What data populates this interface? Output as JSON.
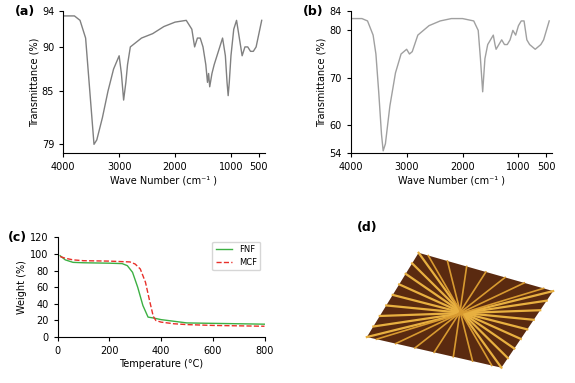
{
  "chart_data": [
    {
      "type": "line",
      "title": "(a)",
      "x_label": "Wave Number (cm⁻¹ )",
      "y_label": "Transmittance (%)",
      "x": [
        4000,
        3800,
        3700,
        3600,
        3500,
        3450,
        3400,
        3300,
        3200,
        3100,
        3000,
        2960,
        2920,
        2880,
        2850,
        2800,
        2600,
        2400,
        2200,
        2000,
        1800,
        1700,
        1650,
        1600,
        1550,
        1500,
        1450,
        1420,
        1400,
        1380,
        1340,
        1300,
        1250,
        1200,
        1150,
        1100,
        1070,
        1050,
        1030,
        1000,
        950,
        900,
        850,
        800,
        750,
        700,
        650,
        600,
        550,
        500,
        450
      ],
      "values": [
        93.5,
        93.5,
        93,
        91,
        83,
        79,
        79.5,
        82,
        85,
        87.5,
        89,
        87,
        84,
        86,
        88,
        90,
        91,
        91.5,
        92.3,
        92.8,
        93,
        92,
        90,
        91,
        91,
        90,
        88,
        86,
        87,
        85.5,
        87,
        88,
        89,
        90,
        91,
        89,
        86,
        84.5,
        86,
        89,
        92,
        93,
        91,
        89,
        90,
        90,
        89.5,
        89.5,
        90,
        91.5,
        93
      ],
      "color": "#808080",
      "xlim": [
        4000,
        400
      ],
      "xticks": [
        4000,
        3000,
        2000,
        1000,
        500
      ],
      "ylim": [
        78,
        94
      ],
      "yticks": [
        79,
        85,
        90,
        94
      ],
      "grid": false
    },
    {
      "type": "line",
      "title": "(b)",
      "x_label": "Wave Number (cm⁻¹ )",
      "y_label": "Transmittance (%)",
      "x": [
        4000,
        3800,
        3700,
        3600,
        3550,
        3500,
        3450,
        3420,
        3380,
        3300,
        3200,
        3100,
        3000,
        2950,
        2900,
        2800,
        2600,
        2400,
        2200,
        2000,
        1800,
        1720,
        1680,
        1640,
        1600,
        1550,
        1500,
        1450,
        1420,
        1400,
        1350,
        1300,
        1250,
        1200,
        1150,
        1100,
        1050,
        1000,
        950,
        900,
        850,
        800,
        750,
        700,
        650,
        600,
        550,
        500,
        450
      ],
      "values": [
        82.5,
        82.5,
        82,
        79,
        75,
        67,
        58,
        54.5,
        56,
        64,
        71,
        75,
        76,
        75,
        75.5,
        79,
        81,
        82,
        82.5,
        82.5,
        82,
        80,
        74,
        67,
        74,
        77,
        78,
        79,
        77,
        76,
        77,
        78,
        77,
        77,
        78,
        80,
        79,
        81,
        82,
        82,
        78,
        77,
        76.5,
        76,
        76.5,
        77,
        78,
        80,
        82
      ],
      "color": "#a0a0a0",
      "xlim": [
        4000,
        400
      ],
      "xticks": [
        4000,
        3000,
        2000,
        1000,
        500
      ],
      "ylim": [
        54,
        84
      ],
      "yticks": [
        54,
        60,
        70,
        80,
        84
      ],
      "grid": false
    },
    {
      "type": "line",
      "title": "(c)",
      "x_label": "Temperature (°C)",
      "y_label": "Weight (%)",
      "xlim": [
        0,
        800
      ],
      "xticks": [
        0,
        200,
        400,
        600,
        800
      ],
      "ylim": [
        0,
        120
      ],
      "yticks": [
        0,
        20,
        40,
        60,
        80,
        100,
        120
      ],
      "legend": "upper right",
      "grid": false,
      "series": [
        {
          "name": "FNF",
          "color": "#3cb043",
          "line_style": "solid",
          "x": [
            10,
            30,
            60,
            100,
            200,
            250,
            270,
            290,
            310,
            330,
            350,
            370,
            400,
            450,
            500,
            600,
            700,
            800
          ],
          "values": [
            98,
            93,
            90,
            89.5,
            89,
            88.5,
            86,
            78,
            60,
            38,
            24,
            23,
            21,
            19,
            17,
            16.5,
            16,
            15.5
          ]
        },
        {
          "name": "MCF",
          "color": "#e8302a",
          "line_style": "dashed",
          "x": [
            10,
            30,
            60,
            100,
            200,
            280,
            300,
            320,
            340,
            355,
            370,
            380,
            400,
            450,
            500,
            600,
            700,
            800
          ],
          "values": [
            97,
            95,
            93,
            92,
            91.5,
            90.5,
            88,
            82,
            66,
            45,
            25,
            20,
            18,
            16,
            15,
            14,
            13.5,
            13
          ]
        }
      ]
    },
    {
      "type": "image",
      "title": "(d)"
    }
  ]
}
